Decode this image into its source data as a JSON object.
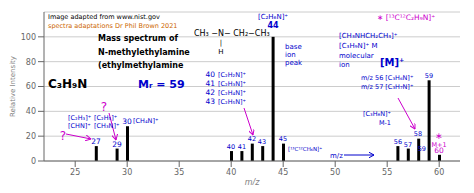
{
  "chart_data": {
    "type": "bar",
    "xlabel": "m/z",
    "ylabel": "Relative Intensity",
    "x": [
      27,
      29,
      30,
      40,
      41,
      42,
      43,
      44,
      45,
      56,
      57,
      58,
      59,
      60
    ],
    "values": [
      12,
      10,
      28,
      8,
      8,
      14,
      12,
      100,
      14,
      12,
      10,
      18,
      65,
      5
    ],
    "color": "#000000",
    "xlim": [
      22,
      62
    ],
    "ylim": [
      0,
      120
    ],
    "xticks": [
      25,
      30,
      35,
      40,
      45,
      50,
      55,
      60
    ],
    "yticks": [
      0,
      20,
      40,
      60,
      80,
      100
    ],
    "grid": "y",
    "annotations": [
      {
        "text": "Image adapted from www.nist.gov",
        "color": "#000000"
      },
      {
        "text": "spectra adaptations Dr Phil Brown 2021",
        "color": "#cc6600"
      },
      {
        "text": "Mass spectrum of",
        "color": "#000000"
      },
      {
        "text": "CH₃ −N− CH₂−CH₃",
        "color": "#000000"
      },
      {
        "text": "|",
        "color": "#000000"
      },
      {
        "text": "H",
        "color": "#000000"
      },
      {
        "text": "N-methylethylamine",
        "color": "#000000"
      },
      {
        "text": "(ethylmethylamine",
        "color": "#000000"
      },
      {
        "text": "C₃H₉N",
        "color": "#000000"
      },
      {
        "text": "Mᵣ = 59",
        "color": "#0000cc"
      },
      {
        "text": "[C₂H₆N]⁺",
        "color": "#0000cc"
      },
      {
        "text": "44",
        "color": "#0000cc"
      },
      {
        "text": "base",
        "color": "#0000cc"
      },
      {
        "text": "ion",
        "color": "#0000cc"
      },
      {
        "text": "peak",
        "color": "#0000cc"
      },
      {
        "text": "40",
        "color": "#0000cc"
      },
      {
        "text": "[C₂H₂N]⁺",
        "color": "#0000cc"
      },
      {
        "text": "41",
        "color": "#0000cc"
      },
      {
        "text": "[C₂H₃N]⁺",
        "color": "#0000cc"
      },
      {
        "text": "42",
        "color": "#0000cc"
      },
      {
        "text": "[C₂H₄N]⁺",
        "color": "#0000cc"
      },
      {
        "text": "43",
        "color": "#0000cc"
      },
      {
        "text": "[C₂H₅N]⁺",
        "color": "#0000cc"
      },
      {
        "text": "40",
        "color": "#0000cc"
      },
      {
        "text": "41",
        "color": "#0000cc"
      },
      {
        "text": "42",
        "color": "#0000cc"
      },
      {
        "text": "43",
        "color": "#0000cc"
      },
      {
        "text": "45",
        "color": "#0000cc"
      },
      {
        "text": "[¹³C¹²CH₆N]⁺",
        "color": "#0000cc"
      },
      {
        "text": "[C₂H₃]⁺",
        "color": "#0000cc"
      },
      {
        "text": "[CHN]⁺",
        "color": "#0000cc"
      },
      {
        "text": "[C₂H₅]⁺",
        "color": "#0000cc"
      },
      {
        "text": "[CH₃N]⁺",
        "color": "#0000cc"
      },
      {
        "text": "[CH₄N]⁺",
        "color": "#0000cc"
      },
      {
        "text": "27",
        "color": "#0000cc"
      },
      {
        "text": "29",
        "color": "#0000cc"
      },
      {
        "text": "30",
        "color": "#0000cc"
      },
      {
        "text": "?",
        "color": "#cc00cc"
      },
      {
        "text": "?",
        "color": "#cc00cc"
      },
      {
        "text": "56",
        "color": "#0000cc"
      },
      {
        "text": "57",
        "color": "#0000cc"
      },
      {
        "text": "58",
        "color": "#0000cc"
      },
      {
        "text": "59",
        "color": "#0000cc"
      },
      {
        "text": "60",
        "color": "#cc00cc"
      },
      {
        "text": "m/z 56 [C₃H₆N]⁺",
        "color": "#0000cc"
      },
      {
        "text": "m/z 57 [C₃H₇N]⁺",
        "color": "#0000cc"
      },
      {
        "text": "∗ [¹³C¹²C₂H₉N]⁺",
        "color": "#cc00cc"
      },
      {
        "text": "[CH₃NHCH₂CH₃]⁺",
        "color": "#0000cc"
      },
      {
        "text": "[C₃H₉N]⁺ M",
        "color": "#0000cc"
      },
      {
        "text": "molecular",
        "color": "#0000cc"
      },
      {
        "text": "ion",
        "color": "#0000cc"
      },
      {
        "text": "[M]⁺",
        "color": "#0000cc"
      },
      {
        "text": "[C₃H₈N]⁺",
        "color": "#0000cc"
      },
      {
        "text": "M-1",
        "color": "#0000cc"
      },
      {
        "text": "59",
        "color": "#0000cc"
      },
      {
        "text": "∗",
        "color": "#cc00cc"
      },
      {
        "text": "M+1",
        "color": "#cc00cc"
      },
      {
        "text": "m/z",
        "color": "#0000cc"
      }
    ]
  }
}
